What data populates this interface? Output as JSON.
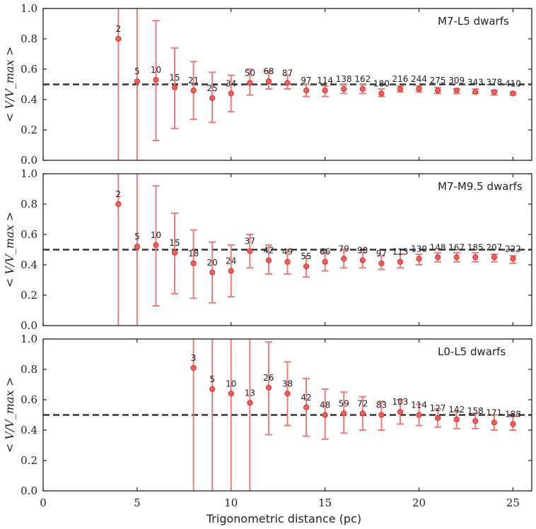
{
  "chart_data": [
    {
      "type": "scatter",
      "title": "M7-L5 dwarfs",
      "xlabel": "",
      "ylabel": "< V/V_max >",
      "xlim": [
        0,
        26
      ],
      "ylim": [
        0,
        1.0
      ],
      "yticks": [
        0.0,
        0.2,
        0.4,
        0.6,
        0.8,
        1.0
      ],
      "ytick_labels": [
        "0.0",
        "0.2",
        "0.4",
        "0.6",
        "0.8",
        "1.0"
      ],
      "reference_line": 0.5,
      "points": [
        {
          "x": 4,
          "y": 0.8,
          "lo": 0.0,
          "hi": 1.0,
          "n": "2"
        },
        {
          "x": 5,
          "y": 0.52,
          "lo": 0.0,
          "hi": 1.0,
          "n": "5"
        },
        {
          "x": 6,
          "y": 0.53,
          "lo": 0.13,
          "hi": 0.92,
          "n": "10"
        },
        {
          "x": 7,
          "y": 0.48,
          "lo": 0.21,
          "hi": 0.74,
          "n": "15"
        },
        {
          "x": 8,
          "y": 0.46,
          "lo": 0.27,
          "hi": 0.65,
          "n": "21"
        },
        {
          "x": 9,
          "y": 0.41,
          "lo": 0.25,
          "hi": 0.58,
          "n": "25"
        },
        {
          "x": 10,
          "y": 0.44,
          "lo": 0.32,
          "hi": 0.56,
          "n": "34"
        },
        {
          "x": 11,
          "y": 0.51,
          "lo": 0.43,
          "hi": 0.6,
          "n": "50"
        },
        {
          "x": 12,
          "y": 0.52,
          "lo": 0.47,
          "hi": 0.59,
          "n": "68"
        },
        {
          "x": 13,
          "y": 0.51,
          "lo": 0.47,
          "hi": 0.56,
          "n": "87"
        },
        {
          "x": 14,
          "y": 0.46,
          "lo": 0.42,
          "hi": 0.5,
          "n": "97"
        },
        {
          "x": 15,
          "y": 0.46,
          "lo": 0.42,
          "hi": 0.49,
          "n": "114"
        },
        {
          "x": 16,
          "y": 0.47,
          "lo": 0.44,
          "hi": 0.5,
          "n": "138"
        },
        {
          "x": 17,
          "y": 0.47,
          "lo": 0.44,
          "hi": 0.5,
          "n": "162"
        },
        {
          "x": 18,
          "y": 0.44,
          "lo": 0.42,
          "hi": 0.47,
          "n": "180"
        },
        {
          "x": 19,
          "y": 0.47,
          "lo": 0.45,
          "hi": 0.49,
          "n": "216"
        },
        {
          "x": 20,
          "y": 0.47,
          "lo": 0.45,
          "hi": 0.49,
          "n": "244"
        },
        {
          "x": 21,
          "y": 0.46,
          "lo": 0.44,
          "hi": 0.48,
          "n": "275"
        },
        {
          "x": 22,
          "y": 0.46,
          "lo": 0.44,
          "hi": 0.47,
          "n": "309"
        },
        {
          "x": 23,
          "y": 0.45,
          "lo": 0.44,
          "hi": 0.47,
          "n": "343"
        },
        {
          "x": 24,
          "y": 0.45,
          "lo": 0.43,
          "hi": 0.46,
          "n": "378"
        },
        {
          "x": 25,
          "y": 0.44,
          "lo": 0.43,
          "hi": 0.45,
          "n": "410"
        }
      ]
    },
    {
      "type": "scatter",
      "title": "M7-M9.5 dwarfs",
      "xlabel": "",
      "ylabel": "< V/V_max >",
      "xlim": [
        0,
        26
      ],
      "ylim": [
        0,
        1.0
      ],
      "yticks": [
        0.0,
        0.2,
        0.4,
        0.6,
        0.8,
        1.0
      ],
      "ytick_labels": [
        "0.0",
        "0.2",
        "0.4",
        "0.6",
        "0.8",
        "1.0"
      ],
      "reference_line": 0.5,
      "points": [
        {
          "x": 4,
          "y": 0.8,
          "lo": 0.0,
          "hi": 1.0,
          "n": "2"
        },
        {
          "x": 5,
          "y": 0.52,
          "lo": 0.0,
          "hi": 1.0,
          "n": "5"
        },
        {
          "x": 6,
          "y": 0.53,
          "lo": 0.13,
          "hi": 0.92,
          "n": "10"
        },
        {
          "x": 7,
          "y": 0.48,
          "lo": 0.21,
          "hi": 0.74,
          "n": "15"
        },
        {
          "x": 8,
          "y": 0.41,
          "lo": 0.18,
          "hi": 0.63,
          "n": "18"
        },
        {
          "x": 9,
          "y": 0.35,
          "lo": 0.15,
          "hi": 0.55,
          "n": "20"
        },
        {
          "x": 10,
          "y": 0.36,
          "lo": 0.19,
          "hi": 0.53,
          "n": "24"
        },
        {
          "x": 11,
          "y": 0.49,
          "lo": 0.38,
          "hi": 0.6,
          "n": "37"
        },
        {
          "x": 12,
          "y": 0.43,
          "lo": 0.34,
          "hi": 0.53,
          "n": "42"
        },
        {
          "x": 13,
          "y": 0.42,
          "lo": 0.34,
          "hi": 0.5,
          "n": "49"
        },
        {
          "x": 14,
          "y": 0.39,
          "lo": 0.32,
          "hi": 0.46,
          "n": "55"
        },
        {
          "x": 15,
          "y": 0.42,
          "lo": 0.36,
          "hi": 0.48,
          "n": "66"
        },
        {
          "x": 16,
          "y": 0.44,
          "lo": 0.38,
          "hi": 0.5,
          "n": "79"
        },
        {
          "x": 17,
          "y": 0.43,
          "lo": 0.38,
          "hi": 0.48,
          "n": "90"
        },
        {
          "x": 18,
          "y": 0.41,
          "lo": 0.37,
          "hi": 0.46,
          "n": "97"
        },
        {
          "x": 19,
          "y": 0.42,
          "lo": 0.38,
          "hi": 0.47,
          "n": "113"
        },
        {
          "x": 20,
          "y": 0.44,
          "lo": 0.4,
          "hi": 0.47,
          "n": "130"
        },
        {
          "x": 21,
          "y": 0.45,
          "lo": 0.42,
          "hi": 0.48,
          "n": "148"
        },
        {
          "x": 22,
          "y": 0.45,
          "lo": 0.42,
          "hi": 0.48,
          "n": "167"
        },
        {
          "x": 23,
          "y": 0.45,
          "lo": 0.42,
          "hi": 0.48,
          "n": "185"
        },
        {
          "x": 24,
          "y": 0.45,
          "lo": 0.42,
          "hi": 0.47,
          "n": "207"
        },
        {
          "x": 25,
          "y": 0.44,
          "lo": 0.41,
          "hi": 0.46,
          "n": "222"
        }
      ]
    },
    {
      "type": "scatter",
      "title": "L0-L5 dwarfs",
      "xlabel": "Trigonometric distance (pc)",
      "ylabel": "< V/V_max >",
      "xlim": [
        0,
        26
      ],
      "ylim": [
        0,
        1.0
      ],
      "xticks": [
        0,
        5,
        10,
        15,
        20,
        25
      ],
      "xtick_labels": [
        "0",
        "5",
        "10",
        "15",
        "20",
        "25"
      ],
      "yticks": [
        0.0,
        0.2,
        0.4,
        0.6,
        0.8,
        1.0
      ],
      "ytick_labels": [
        "0.0",
        "0.2",
        "0.4",
        "0.6",
        "0.8",
        "1.0"
      ],
      "reference_line": 0.5,
      "points": [
        {
          "x": 8,
          "y": 0.81,
          "lo": 0.0,
          "hi": 1.0,
          "n": "3"
        },
        {
          "x": 9,
          "y": 0.67,
          "lo": 0.0,
          "hi": 1.0,
          "n": "5"
        },
        {
          "x": 10,
          "y": 0.64,
          "lo": 0.0,
          "hi": 1.0,
          "n": "10"
        },
        {
          "x": 11,
          "y": 0.58,
          "lo": 0.0,
          "hi": 1.0,
          "n": "13"
        },
        {
          "x": 12,
          "y": 0.68,
          "lo": 0.37,
          "hi": 0.98,
          "n": "26"
        },
        {
          "x": 13,
          "y": 0.64,
          "lo": 0.43,
          "hi": 0.85,
          "n": "38"
        },
        {
          "x": 14,
          "y": 0.55,
          "lo": 0.36,
          "hi": 0.74,
          "n": "42"
        },
        {
          "x": 15,
          "y": 0.5,
          "lo": 0.34,
          "hi": 0.67,
          "n": "48"
        },
        {
          "x": 16,
          "y": 0.51,
          "lo": 0.38,
          "hi": 0.65,
          "n": "59"
        },
        {
          "x": 17,
          "y": 0.51,
          "lo": 0.4,
          "hi": 0.62,
          "n": "72"
        },
        {
          "x": 18,
          "y": 0.5,
          "lo": 0.4,
          "hi": 0.59,
          "n": "83"
        },
        {
          "x": 19,
          "y": 0.52,
          "lo": 0.44,
          "hi": 0.6,
          "n": "103"
        },
        {
          "x": 20,
          "y": 0.5,
          "lo": 0.43,
          "hi": 0.57,
          "n": "114"
        },
        {
          "x": 21,
          "y": 0.48,
          "lo": 0.42,
          "hi": 0.54,
          "n": "127"
        },
        {
          "x": 22,
          "y": 0.47,
          "lo": 0.41,
          "hi": 0.52,
          "n": "142"
        },
        {
          "x": 23,
          "y": 0.46,
          "lo": 0.41,
          "hi": 0.51,
          "n": "158"
        },
        {
          "x": 24,
          "y": 0.45,
          "lo": 0.4,
          "hi": 0.5,
          "n": "171"
        },
        {
          "x": 25,
          "y": 0.44,
          "lo": 0.4,
          "hi": 0.49,
          "n": "188"
        }
      ]
    }
  ],
  "colors": {
    "errorbar": "#ee7b7b",
    "marker_fill": "#ff5a5a",
    "marker_edge": "#c0392b",
    "reference_line": "#333333",
    "axis": "#222222"
  }
}
